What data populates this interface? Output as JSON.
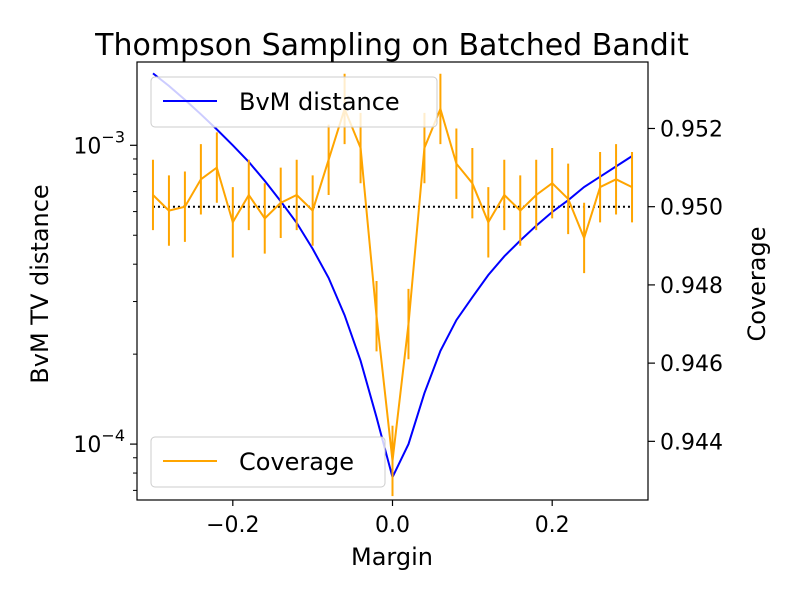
{
  "chart_data": {
    "type": "line",
    "title": "Thompson Sampling on Batched Bandit",
    "xlabel": "Margin",
    "ylabel_left": "BvM TV distance",
    "ylabel_right": "Coverage",
    "xlim": [
      -0.32,
      0.32
    ],
    "ylim_left": [
      6.5e-05,
      0.0019
    ],
    "yscale_left": "log",
    "ylim_right": [
      0.9425,
      0.9537
    ],
    "x_ticks": [
      -0.2,
      0.0,
      0.2
    ],
    "x_tick_labels": [
      "−0.2",
      "0.0",
      "0.2"
    ],
    "y_left_ticks": [
      0.0001,
      0.001
    ],
    "y_left_tick_base": "10",
    "y_left_tick_exponents": [
      "−4",
      "−3"
    ],
    "y_right_ticks": [
      0.944,
      0.946,
      0.948,
      0.95,
      0.952
    ],
    "y_right_tick_labels": [
      "0.944",
      "0.946",
      "0.948",
      "0.950",
      "0.952"
    ],
    "reference_line": {
      "axis": "right",
      "y": 0.95,
      "style": "dotted",
      "color": "#000000"
    },
    "series": [
      {
        "name": "BvM distance",
        "axis": "left",
        "color": "#0000ff",
        "x": [
          -0.3,
          -0.28,
          -0.26,
          -0.24,
          -0.22,
          -0.2,
          -0.18,
          -0.16,
          -0.14,
          -0.12,
          -0.1,
          -0.08,
          -0.06,
          -0.04,
          -0.02,
          0.0,
          0.02,
          0.04,
          0.06,
          0.08,
          0.1,
          0.12,
          0.14,
          0.16,
          0.18,
          0.2,
          0.22,
          0.24,
          0.26,
          0.28,
          0.3
        ],
        "y": [
          0.00174,
          0.00158,
          0.00142,
          0.00127,
          0.00113,
          0.001,
          0.00088,
          0.00076,
          0.00065,
          0.00055,
          0.00045,
          0.00036,
          0.00027,
          0.00019,
          0.000123,
          7.75e-05,
          0.0001,
          0.000148,
          0.000205,
          0.00026,
          0.00031,
          0.000368,
          0.000425,
          0.00048,
          0.000538,
          0.000598,
          0.000655,
          0.000725,
          0.000785,
          0.00085,
          0.00092
        ]
      },
      {
        "name": "Coverage",
        "axis": "right",
        "color": "#ffa500",
        "x": [
          -0.3,
          -0.28,
          -0.26,
          -0.24,
          -0.22,
          -0.2,
          -0.18,
          -0.16,
          -0.14,
          -0.12,
          -0.1,
          -0.08,
          -0.06,
          -0.04,
          -0.02,
          0.0,
          0.02,
          0.04,
          0.06,
          0.08,
          0.1,
          0.12,
          0.14,
          0.16,
          0.18,
          0.2,
          0.22,
          0.24,
          0.26,
          0.28,
          0.3
        ],
        "y": [
          0.9503,
          0.9499,
          0.95,
          0.9507,
          0.951,
          0.9496,
          0.9503,
          0.9497,
          0.9501,
          0.9503,
          0.9499,
          0.9512,
          0.9525,
          0.9515,
          0.9472,
          0.9435,
          0.947,
          0.9515,
          0.9525,
          0.9511,
          0.9506,
          0.9496,
          0.9503,
          0.9499,
          0.9503,
          0.9506,
          0.9502,
          0.9492,
          0.9505,
          0.9507,
          0.9505
        ],
        "err": [
          0.0009,
          0.0009,
          0.0009,
          0.0009,
          0.0009,
          0.0009,
          0.0009,
          0.0009,
          0.0009,
          0.0009,
          0.0009,
          0.0009,
          0.0009,
          0.0009,
          0.0009,
          0.0009,
          0.0009,
          0.0009,
          0.0009,
          0.0009,
          0.0009,
          0.0009,
          0.0009,
          0.0009,
          0.0009,
          0.0009,
          0.0009,
          0.0009,
          0.0009,
          0.0009,
          0.0009
        ]
      }
    ],
    "legends": [
      {
        "placement": "upper-left",
        "series": "BvM distance"
      },
      {
        "placement": "lower-left",
        "series": "Coverage"
      }
    ]
  }
}
